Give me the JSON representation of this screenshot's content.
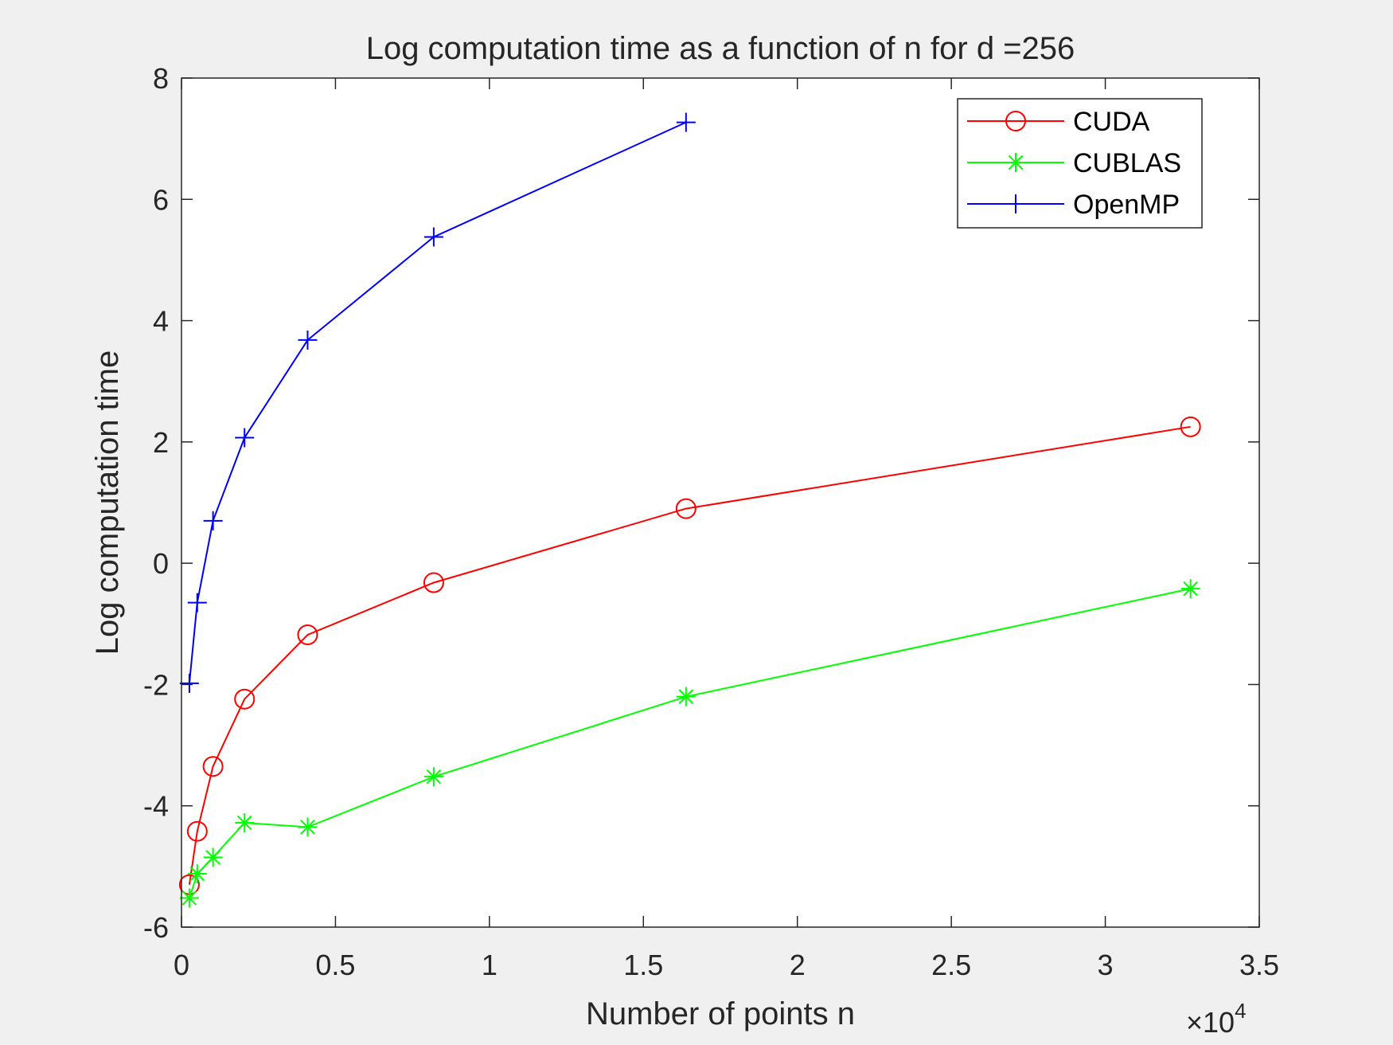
{
  "chart_data": {
    "type": "line",
    "title": "Log computation time as a function of n for d =256",
    "xlabel": "Number of points n",
    "ylabel": "Log computation time",
    "x_exponent_label": "×10",
    "x_exponent_power": "4",
    "xlim": [
      0,
      3.5
    ],
    "ylim": [
      -6,
      8
    ],
    "x_ticks": [
      0,
      0.5,
      1,
      1.5,
      2,
      2.5,
      3,
      3.5
    ],
    "x_tick_labels": [
      "0",
      "0.5",
      "1",
      "1.5",
      "2",
      "2.5",
      "3",
      "3.5"
    ],
    "y_ticks": [
      -6,
      -4,
      -2,
      0,
      2,
      4,
      6,
      8
    ],
    "y_tick_labels": [
      "-6",
      "-4",
      "-2",
      "0",
      "2",
      "4",
      "6",
      "8"
    ],
    "grid": false,
    "legend_position": "top-right",
    "series": [
      {
        "name": "CUDA",
        "color": "#ff0000",
        "marker": "circle",
        "x": [
          0.0256,
          0.0512,
          0.1024,
          0.2048,
          0.4096,
          0.8192,
          1.6384,
          3.2768
        ],
        "y": [
          -5.3,
          -4.42,
          -3.35,
          -2.24,
          -1.18,
          -0.32,
          0.9,
          2.25
        ]
      },
      {
        "name": "CUBLAS",
        "color": "#00ff00",
        "marker": "star",
        "x": [
          0.0256,
          0.0512,
          0.1024,
          0.2048,
          0.4096,
          0.8192,
          1.6384,
          3.2768
        ],
        "y": [
          -5.52,
          -5.12,
          -4.85,
          -4.28,
          -4.35,
          -3.52,
          -2.2,
          -0.42
        ]
      },
      {
        "name": "OpenMP",
        "color": "#0000ff",
        "marker": "plus",
        "x": [
          0.0256,
          0.0512,
          0.1024,
          0.2048,
          0.4096,
          0.8192,
          1.6384
        ],
        "y": [
          -1.98,
          -0.65,
          0.7,
          2.07,
          3.68,
          5.38,
          7.27
        ]
      }
    ]
  }
}
